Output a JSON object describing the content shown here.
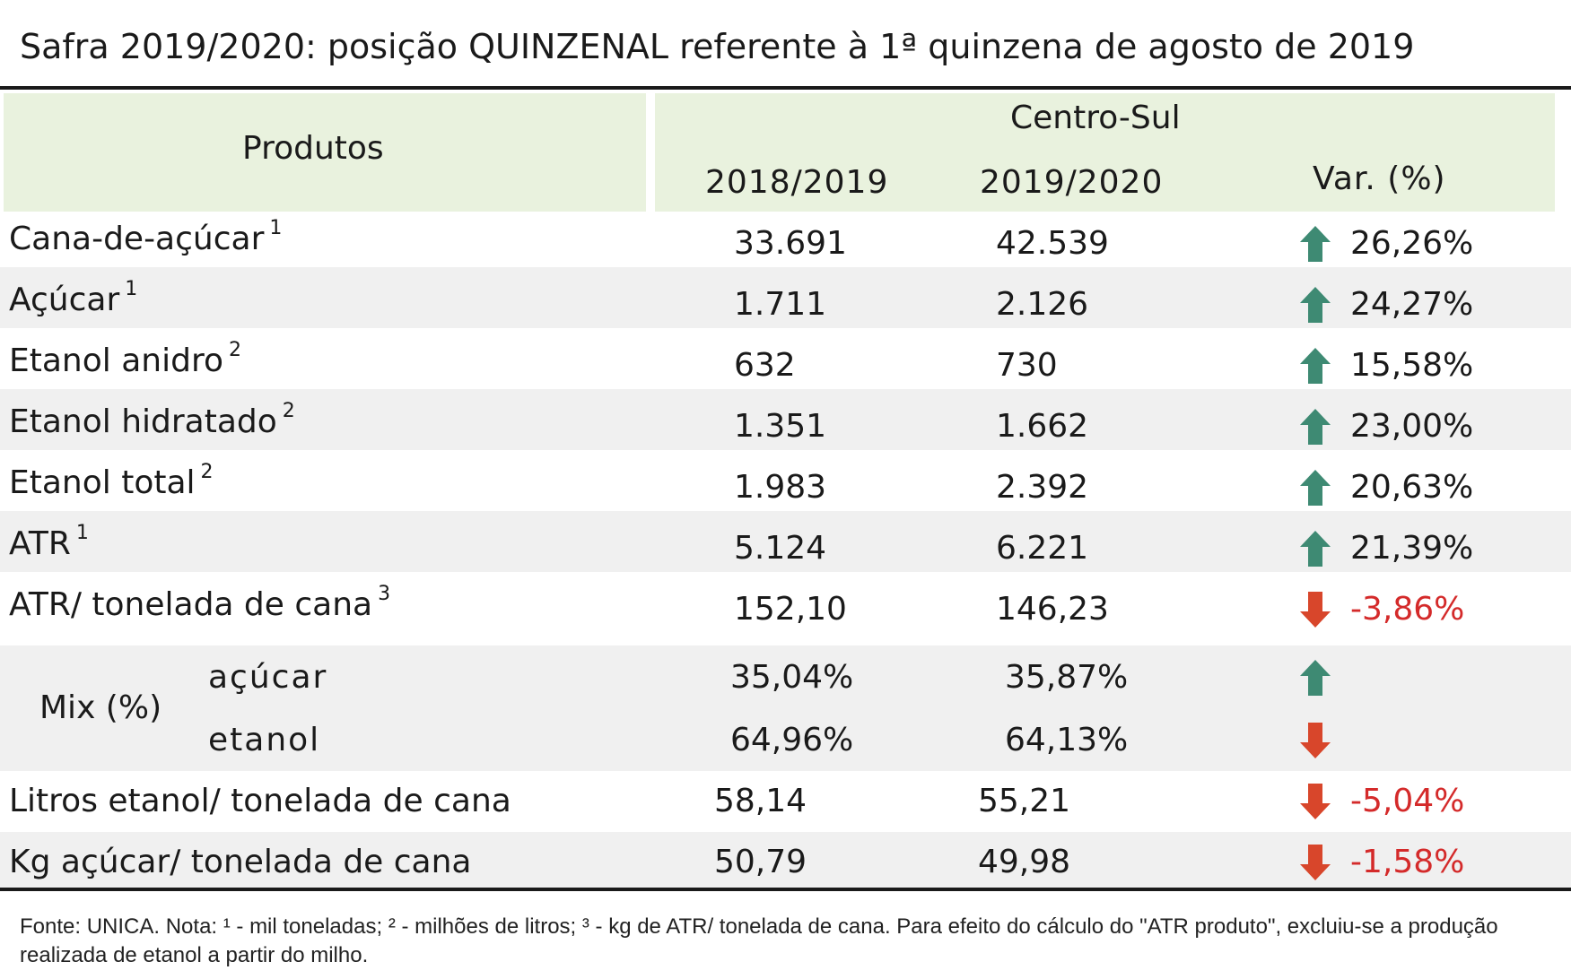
{
  "title": "Safra 2019/2020: posição QUINZENAL referente à 1ª quinzena de agosto de 2019",
  "header": {
    "produtos": "Produtos",
    "region": "Centro-Sul",
    "col1": "2018/2019",
    "col2": "2019/2020",
    "col3": "Var. (%)"
  },
  "rows": [
    {
      "label": "Cana-de-açúcar",
      "sup": "1",
      "v1": "33.691",
      "v2": "42.539",
      "var": "26,26%",
      "dir": "up"
    },
    {
      "label": "Açúcar",
      "sup": "1",
      "v1": "1.711",
      "v2": "2.126",
      "var": "24,27%",
      "dir": "up"
    },
    {
      "label": "Etanol anidro",
      "sup": "2",
      "v1": "632",
      "v2": "730",
      "var": "15,58%",
      "dir": "up"
    },
    {
      "label": "Etanol hidratado",
      "sup": "2",
      "v1": "1.351",
      "v2": "1.662",
      "var": "23,00%",
      "dir": "up"
    },
    {
      "label": "Etanol total",
      "sup": "2",
      "v1": "1.983",
      "v2": "2.392",
      "var": "20,63%",
      "dir": "up"
    },
    {
      "label": "ATR",
      "sup": "1",
      "v1": "5.124",
      "v2": "6.221",
      "var": "21,39%",
      "dir": "up"
    },
    {
      "label": "ATR/ tonelada de cana",
      "sup": "3",
      "v1": "152,10",
      "v2": "146,23",
      "var": "-3,86%",
      "dir": "down"
    }
  ],
  "mix": {
    "label": "Mix (%)",
    "acucar": {
      "label": "açúcar",
      "v1": "35,04%",
      "v2": "35,87%",
      "dir": "up"
    },
    "etanol": {
      "label": "etanol",
      "v1": "64,96%",
      "v2": "64,13%",
      "dir": "down"
    }
  },
  "tail_rows": [
    {
      "label": "Litros etanol/ tonelada de cana",
      "v1": "58,14",
      "v2": "55,21",
      "var": "-5,04%",
      "dir": "down"
    },
    {
      "label": "Kg açúcar/ tonelada de cana",
      "v1": "50,79",
      "v2": "49,98",
      "var": "-1,58%",
      "dir": "down"
    }
  ],
  "footnote": "Fonte: UNICA. Nota: ¹ - mil toneladas; ² - milhões de litros; ³ - kg de ATR/ tonelada de cana. Para efeito do cálculo do \"ATR produto\", excluiu-se a produção realizada de etanol a partir do milho.",
  "colors": {
    "up_arrow": "#3e8a73",
    "down_arrow": "#d8462b",
    "header_bg": "#e9f2de",
    "stripe": "#f0f0f0",
    "negative_text": "#d42a2a"
  },
  "icons": {
    "up": "arrow-up-icon",
    "down": "arrow-down-icon"
  }
}
